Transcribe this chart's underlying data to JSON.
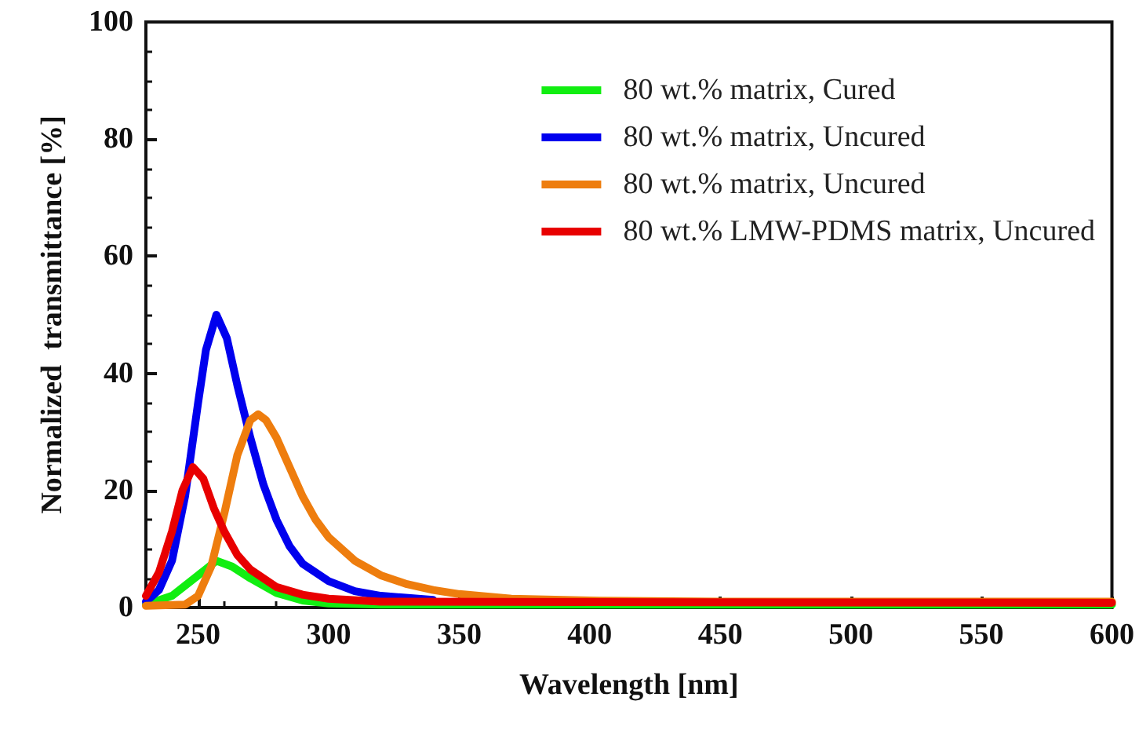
{
  "chart_data": {
    "type": "line",
    "xlabel": "Wavelength [nm]",
    "ylabel": "Normalized  transmittance [%]",
    "xlim": [
      230,
      600
    ],
    "xticks": [
      250,
      300,
      350,
      400,
      450,
      500,
      550,
      600
    ],
    "ylim": [
      0,
      100
    ],
    "yticks": [
      0,
      20,
      40,
      60,
      80,
      100
    ],
    "legend": "top right",
    "grid": false,
    "marker": "none",
    "line_style": "solid",
    "series": [
      {
        "name": "80 wt.% matrix, Cured",
        "color": "#11ee11",
        "x": [
          230,
          240,
          250,
          257,
          263,
          270,
          280,
          290,
          300,
          320,
          600
        ],
        "values": [
          0.5,
          2,
          5.5,
          8,
          7,
          5,
          2.5,
          1.2,
          0.7,
          0.5,
          0.5
        ]
      },
      {
        "name": "80 wt.% matrix, Uncured",
        "color": "#0000ee",
        "x": [
          230,
          235,
          240,
          245,
          250,
          253,
          257,
          261,
          265,
          270,
          275,
          280,
          285,
          290,
          300,
          310,
          320,
          340
        ],
        "values": [
          1,
          3,
          8,
          19,
          35,
          44,
          50,
          46,
          38,
          29,
          21,
          15,
          10.5,
          7.5,
          4.5,
          2.8,
          2,
          1.3
        ]
      },
      {
        "name": "80 wt.% matrix, Uncured",
        "color": "#ee7d0e",
        "x": [
          230,
          245,
          250,
          255,
          260,
          265,
          270,
          273,
          276,
          280,
          285,
          290,
          295,
          300,
          310,
          320,
          330,
          340,
          350,
          370,
          400,
          450,
          600
        ],
        "values": [
          0.3,
          0.5,
          2,
          7,
          16,
          26,
          32,
          33,
          32,
          29,
          24,
          19,
          15,
          12,
          8,
          5.5,
          4,
          3,
          2.3,
          1.5,
          1.2,
          1,
          1
        ]
      },
      {
        "name": "80 wt.% LMW-PDMS matrix, Uncured",
        "color": "#e80000",
        "x": [
          230,
          235,
          240,
          244,
          248,
          252,
          256,
          260,
          265,
          270,
          280,
          290,
          300,
          320,
          600
        ],
        "values": [
          2,
          6,
          13,
          20,
          24,
          22,
          17,
          13,
          9,
          6.5,
          3.5,
          2.2,
          1.5,
          1,
          0.8
        ]
      }
    ]
  }
}
